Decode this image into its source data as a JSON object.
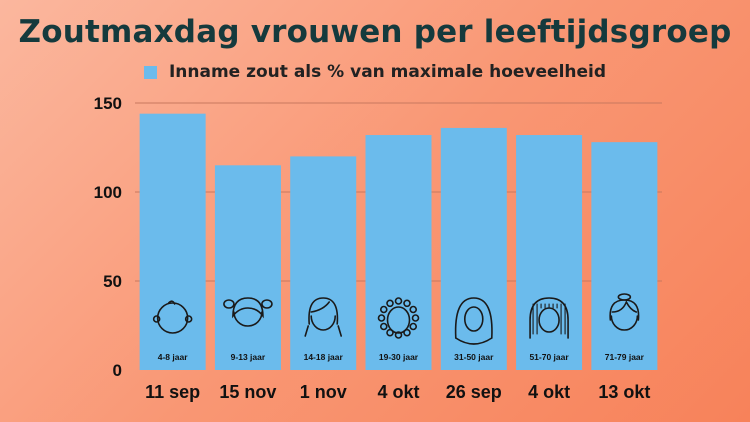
{
  "colors": {
    "bar": "#6bbbec",
    "title": "#153a3d",
    "gridline": "#c8785e",
    "icon_stroke": "#1a1a1a"
  },
  "chart_data": {
    "type": "bar",
    "title": "Zoutmaxdag vrouwen per leeftijdsgroep",
    "series": [
      {
        "name": "Inname zout als % van maximale hoeveelheid",
        "values": [
          144,
          115,
          120,
          132,
          136,
          132,
          128
        ]
      }
    ],
    "categories": [
      "11 sep",
      "15 nov",
      "1 nov",
      "4 okt",
      "26 sep",
      "4 okt",
      "13 okt"
    ],
    "age_groups": [
      "4-8 jaar",
      "9-13 jaar",
      "14-18 jaar",
      "19-30 jaar",
      "31-50 jaar",
      "51-70 jaar",
      "71-79 jaar"
    ],
    "icons": [
      "baby-face-icon",
      "girl-pigtails-icon",
      "teen-girl-icon",
      "curly-hair-woman-icon",
      "headscarf-woman-icon",
      "braided-hair-woman-icon",
      "bun-hair-woman-icon"
    ],
    "y_ticks": [
      0,
      50,
      100,
      150
    ],
    "ylim": [
      0,
      150
    ],
    "xlabel": "",
    "ylabel": "",
    "grid": true,
    "legend_position": "top"
  }
}
